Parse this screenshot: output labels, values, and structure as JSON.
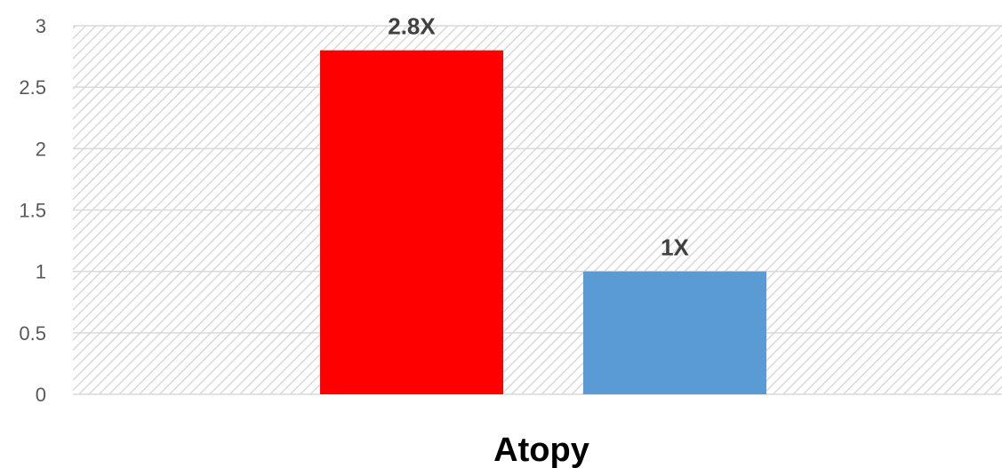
{
  "chart_data": {
    "type": "bar",
    "categories": [
      "",
      ""
    ],
    "values": [
      2.8,
      1
    ],
    "data_labels": [
      "2.8X",
      "1X"
    ],
    "bar_colors": [
      "#ff0000",
      "#5b9bd5"
    ],
    "title": "",
    "xlabel": "Atopy",
    "ylabel": "",
    "ylim": [
      0,
      3
    ],
    "yticks": [
      0,
      0.5,
      1,
      1.5,
      2,
      2.5,
      3
    ],
    "ytick_labels": [
      "0",
      "0.5",
      "1",
      "1.5",
      "2",
      "2.5",
      "3"
    ],
    "grid": true,
    "plot_background": "hatched light gray",
    "legend": "none"
  }
}
